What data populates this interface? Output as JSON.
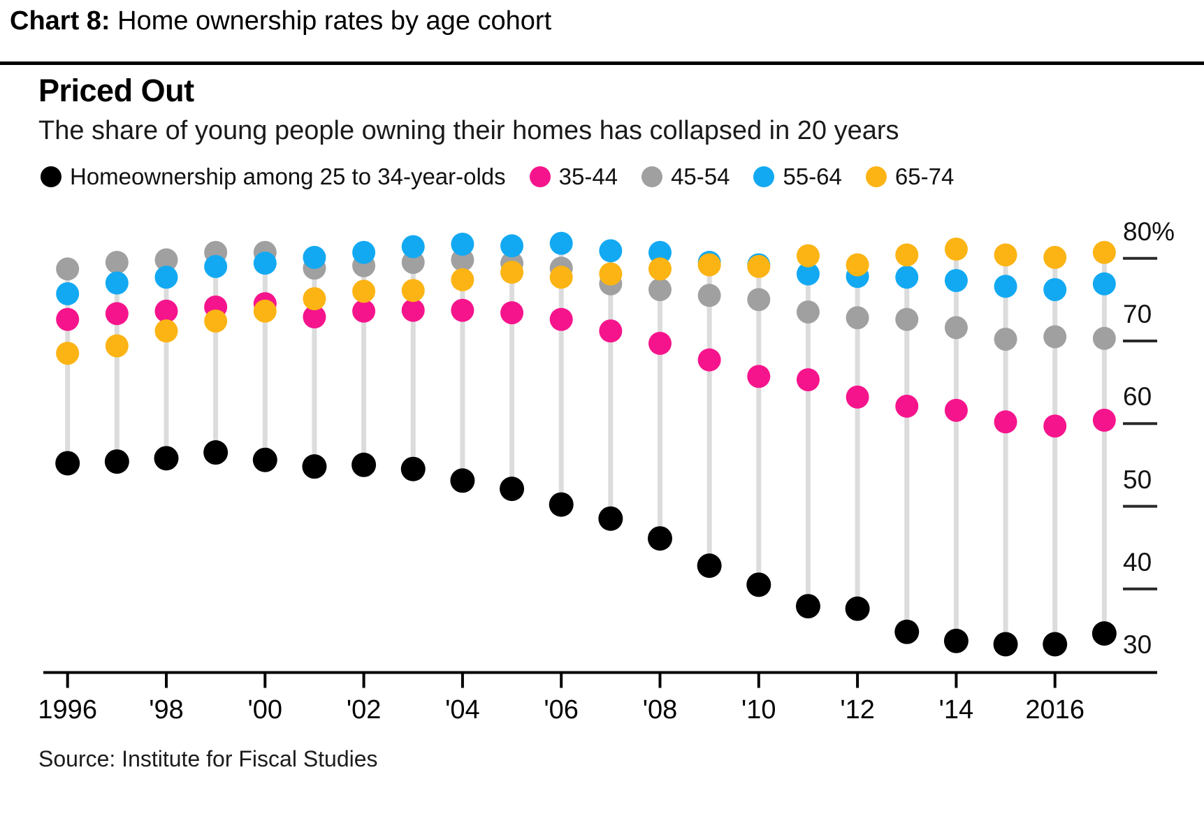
{
  "header": {
    "title_bold": "Chart 8:",
    "title_rest": " Home ownership rates by age cohort"
  },
  "chart": {
    "title": "Priced Out",
    "subtitle": "The share of young people owning their homes has collapsed in 20 years",
    "source": "Source: Institute for Fiscal Studies"
  },
  "chart_data": {
    "type": "scatter",
    "note": "dot-column (lollipop) chart; one column per year, five age-cohort dots per column, % homeownership",
    "x": [
      1996,
      1997,
      1998,
      1999,
      2000,
      2001,
      2002,
      2003,
      2004,
      2005,
      2006,
      2007,
      2008,
      2009,
      2010,
      2011,
      2012,
      2013,
      2014,
      2015,
      2016,
      2017
    ],
    "x_ticks": [
      {
        "year": 1996,
        "label": "1996"
      },
      {
        "year": 1998,
        "label": "'98"
      },
      {
        "year": 2000,
        "label": "'00"
      },
      {
        "year": 2002,
        "label": "'02"
      },
      {
        "year": 2004,
        "label": "'04"
      },
      {
        "year": 2006,
        "label": "'06"
      },
      {
        "year": 2008,
        "label": "'08"
      },
      {
        "year": 2010,
        "label": "'10"
      },
      {
        "year": 2012,
        "label": "'12"
      },
      {
        "year": 2014,
        "label": "'14"
      },
      {
        "year": 2016,
        "label": "2016"
      }
    ],
    "y_ticks": [
      {
        "value": 80,
        "label": "80%",
        "dash": true
      },
      {
        "value": 70,
        "label": "70",
        "dash": true
      },
      {
        "value": 60,
        "label": "60",
        "dash": true
      },
      {
        "value": 50,
        "label": "50",
        "dash": true
      },
      {
        "value": 40,
        "label": "40",
        "dash": true
      },
      {
        "value": 30,
        "label": "30",
        "dash": false
      }
    ],
    "ylim": [
      28,
      81
    ],
    "legend_position": "top",
    "grid": false,
    "series": [
      {
        "name": "Homeownership among 25 to 34-year-olds",
        "color": "#000000",
        "values": [
          52.0,
          52.2,
          52.6,
          53.3,
          52.4,
          51.6,
          51.8,
          51.3,
          49.9,
          48.9,
          47.0,
          45.3,
          42.9,
          39.6,
          37.3,
          34.7,
          34.4,
          31.6,
          30.5,
          30.1,
          30.1,
          31.4
        ]
      },
      {
        "name": "35-44",
        "color": "#f6148c",
        "values": [
          69.4,
          70.1,
          70.4,
          70.9,
          71.3,
          69.7,
          70.4,
          70.5,
          70.5,
          70.2,
          69.4,
          68.0,
          66.5,
          64.5,
          62.5,
          62.1,
          60.0,
          58.9,
          58.4,
          57.0,
          56.5,
          57.2
        ]
      },
      {
        "name": "45-54",
        "color": "#a0a0a0",
        "values": [
          75.5,
          76.3,
          76.6,
          77.5,
          77.5,
          75.6,
          75.9,
          76.3,
          76.6,
          76.2,
          75.6,
          73.7,
          73.0,
          72.3,
          71.8,
          70.3,
          69.6,
          69.4,
          68.4,
          67.0,
          67.3,
          67.1
        ]
      },
      {
        "name": "55-64",
        "color": "#12a9f2",
        "values": [
          72.5,
          73.8,
          74.5,
          75.8,
          76.2,
          76.9,
          77.5,
          78.2,
          78.5,
          78.3,
          78.6,
          77.7,
          77.5,
          76.3,
          76.0,
          74.9,
          74.6,
          74.5,
          74.1,
          73.4,
          73.0,
          73.7
        ]
      },
      {
        "name": "65-74",
        "color": "#fcb414",
        "values": [
          65.3,
          66.2,
          68.0,
          69.2,
          70.4,
          71.9,
          72.8,
          72.9,
          74.2,
          75.1,
          74.5,
          74.9,
          75.5,
          76.0,
          75.8,
          77.1,
          76.0,
          77.2,
          77.9,
          77.2,
          76.9,
          77.5
        ]
      }
    ],
    "stick_color": "#dcdcdc",
    "axis_color": "#000000"
  }
}
